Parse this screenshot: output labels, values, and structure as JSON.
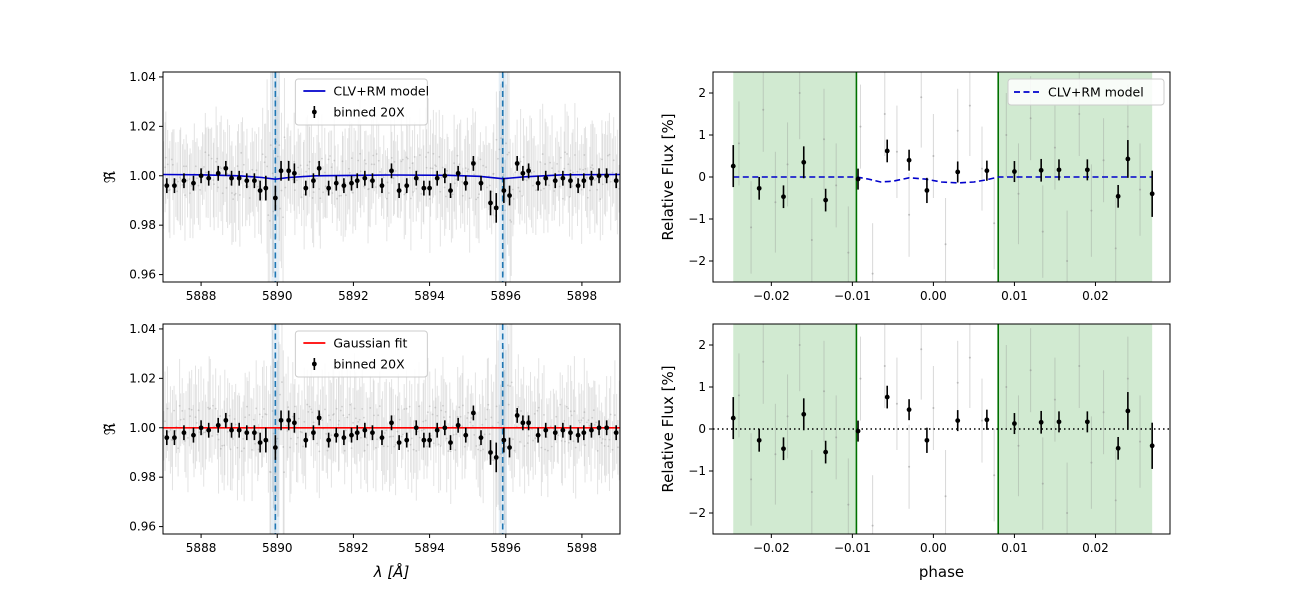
{
  "chart_data": [
    {
      "type": "line",
      "id": "tl",
      "ylabel": "ℜ̃",
      "xlabel": "",
      "xlim": [
        5887.0,
        5899.0
      ],
      "ylim": [
        0.957,
        1.042
      ],
      "xticks": [
        5888,
        5890,
        5892,
        5894,
        5896,
        5898
      ],
      "yticks": [
        0.96,
        0.98,
        1.0,
        1.02,
        1.04
      ],
      "yticklabels": [
        "0.96",
        "0.98",
        "1.00",
        "1.02",
        "1.04"
      ],
      "vlines": [
        5889.95,
        5895.92
      ],
      "model": {
        "name": "CLV+RM model",
        "color": "#0000cc",
        "style": "solid",
        "points": [
          [
            5887.0,
            1.0005
          ],
          [
            5888.0,
            1.0004
          ],
          [
            5889.0,
            1.0
          ],
          [
            5889.6,
            0.9993
          ],
          [
            5889.95,
            0.9986
          ],
          [
            5890.3,
            0.9993
          ],
          [
            5891.0,
            1.0
          ],
          [
            5893.0,
            1.0003
          ],
          [
            5894.5,
            1.0002
          ],
          [
            5895.3,
            0.9998
          ],
          [
            5895.92,
            0.9988
          ],
          [
            5896.5,
            0.9996
          ],
          [
            5897.5,
            1.0004
          ],
          [
            5899.0,
            1.0005
          ]
        ]
      },
      "binned": {
        "name": "binned 20X",
        "x": [
          5887.1,
          5887.3,
          5887.55,
          5887.8,
          5888.0,
          5888.2,
          5888.45,
          5888.65,
          5888.8,
          5889.0,
          5889.2,
          5889.4,
          5889.55,
          5889.7,
          5889.95,
          5890.1,
          5890.3,
          5890.45,
          5890.75,
          5890.95,
          5891.1,
          5891.35,
          5891.55,
          5891.75,
          5891.95,
          5892.1,
          5892.3,
          5892.5,
          5892.75,
          5893.0,
          5893.2,
          5893.4,
          5893.65,
          5893.85,
          5894.0,
          5894.2,
          5894.4,
          5894.55,
          5894.75,
          5894.95,
          5895.15,
          5895.35,
          5895.6,
          5895.75,
          5895.95,
          5896.1,
          5896.3,
          5896.45,
          5896.6,
          5896.85,
          5897.05,
          5897.3,
          5897.5,
          5897.7,
          5897.9,
          5898.05,
          5898.25,
          5898.45,
          5898.65,
          5898.9
        ],
        "y": [
          0.996,
          0.996,
          0.998,
          0.997,
          1.0,
          0.999,
          1.001,
          1.003,
          0.999,
          0.999,
          0.998,
          0.998,
          0.994,
          0.995,
          0.991,
          1.002,
          1.002,
          1.001,
          0.995,
          0.998,
          1.003,
          0.995,
          0.997,
          0.996,
          0.997,
          0.998,
          0.999,
          0.998,
          0.996,
          1.002,
          0.994,
          0.996,
          0.999,
          0.995,
          0.995,
          0.999,
          1.0,
          0.994,
          1.001,
          0.997,
          1.005,
          0.997,
          0.989,
          0.987,
          0.994,
          0.992,
          1.005,
          1.001,
          1.002,
          0.997,
          0.999,
          0.998,
          0.999,
          0.998,
          0.996,
          0.998,
          0.999,
          1.0,
          1.0,
          0.998
        ],
        "err": [
          0.003,
          0.003,
          0.003,
          0.003,
          0.003,
          0.003,
          0.003,
          0.003,
          0.003,
          0.003,
          0.003,
          0.003,
          0.004,
          0.005,
          0.005,
          0.004,
          0.004,
          0.004,
          0.003,
          0.003,
          0.003,
          0.003,
          0.003,
          0.003,
          0.003,
          0.003,
          0.003,
          0.003,
          0.003,
          0.003,
          0.003,
          0.003,
          0.003,
          0.003,
          0.003,
          0.003,
          0.003,
          0.003,
          0.003,
          0.003,
          0.003,
          0.003,
          0.005,
          0.006,
          0.005,
          0.004,
          0.003,
          0.003,
          0.003,
          0.003,
          0.003,
          0.003,
          0.003,
          0.003,
          0.003,
          0.003,
          0.003,
          0.003,
          0.003,
          0.003
        ]
      },
      "legend_position": "upper-center"
    },
    {
      "type": "line",
      "id": "bl",
      "ylabel": "ℜ̃",
      "xlabel": "λ [Å]",
      "xlim": [
        5887.0,
        5899.0
      ],
      "ylim": [
        0.957,
        1.042
      ],
      "xticks": [
        5888,
        5890,
        5892,
        5894,
        5896,
        5898
      ],
      "yticks": [
        0.96,
        0.98,
        1.0,
        1.02,
        1.04
      ],
      "yticklabels": [
        "0.96",
        "0.98",
        "1.00",
        "1.02",
        "1.04"
      ],
      "vlines": [
        5889.95,
        5895.92
      ],
      "model": {
        "name": "Gaussian fit",
        "color": "#ff0000",
        "style": "solid",
        "points": [
          [
            5887.0,
            1.0
          ],
          [
            5899.0,
            1.0
          ]
        ]
      },
      "binned": {
        "name": "binned 20X",
        "x": [
          5887.1,
          5887.3,
          5887.55,
          5887.8,
          5888.0,
          5888.2,
          5888.45,
          5888.65,
          5888.8,
          5889.0,
          5889.2,
          5889.4,
          5889.55,
          5889.7,
          5889.95,
          5890.1,
          5890.3,
          5890.45,
          5890.75,
          5890.95,
          5891.1,
          5891.35,
          5891.55,
          5891.75,
          5891.95,
          5892.1,
          5892.3,
          5892.5,
          5892.75,
          5893.0,
          5893.2,
          5893.4,
          5893.65,
          5893.85,
          5894.0,
          5894.2,
          5894.4,
          5894.55,
          5894.75,
          5894.95,
          5895.15,
          5895.35,
          5895.6,
          5895.75,
          5895.95,
          5896.1,
          5896.3,
          5896.45,
          5896.6,
          5896.85,
          5897.05,
          5897.3,
          5897.5,
          5897.7,
          5897.9,
          5898.05,
          5898.25,
          5898.45,
          5898.65,
          5898.9
        ],
        "y": [
          0.996,
          0.996,
          0.998,
          0.997,
          1.0,
          0.999,
          1.001,
          1.003,
          0.999,
          0.999,
          0.998,
          0.998,
          0.994,
          0.995,
          0.992,
          1.003,
          1.003,
          1.002,
          0.995,
          0.998,
          1.004,
          0.995,
          0.997,
          0.996,
          0.997,
          0.998,
          0.999,
          0.998,
          0.996,
          1.002,
          0.994,
          0.995,
          1.0,
          0.995,
          0.995,
          0.999,
          1.0,
          0.994,
          1.001,
          0.997,
          1.006,
          0.996,
          0.99,
          0.988,
          0.995,
          0.992,
          1.005,
          1.002,
          1.002,
          0.997,
          0.999,
          0.998,
          0.999,
          0.998,
          0.997,
          0.998,
          0.999,
          1.0,
          1.0,
          0.998
        ],
        "err": [
          0.003,
          0.003,
          0.003,
          0.003,
          0.003,
          0.003,
          0.003,
          0.003,
          0.003,
          0.003,
          0.003,
          0.003,
          0.004,
          0.005,
          0.005,
          0.004,
          0.004,
          0.004,
          0.003,
          0.003,
          0.003,
          0.003,
          0.003,
          0.003,
          0.003,
          0.003,
          0.003,
          0.003,
          0.003,
          0.003,
          0.003,
          0.003,
          0.003,
          0.003,
          0.003,
          0.003,
          0.003,
          0.003,
          0.003,
          0.003,
          0.003,
          0.003,
          0.005,
          0.006,
          0.005,
          0.004,
          0.003,
          0.003,
          0.003,
          0.003,
          0.003,
          0.003,
          0.003,
          0.003,
          0.003,
          0.003,
          0.003,
          0.003,
          0.003,
          0.003
        ]
      },
      "legend_position": "upper-center"
    },
    {
      "type": "scatter",
      "id": "tr",
      "ylabel": "Relative Flux [%]",
      "xlabel": "",
      "xlim": [
        -0.0272,
        0.0292
      ],
      "ylim": [
        -2.5,
        2.5
      ],
      "xticks": [
        -0.02,
        -0.01,
        0.0,
        0.01,
        0.02
      ],
      "xticklabels": [
        "−0.02",
        "−0.01",
        "0.00",
        "0.01",
        "0.02"
      ],
      "yticks": [
        -2,
        -1,
        0,
        1,
        2
      ],
      "yticklabels": [
        "−2",
        "−1",
        "0",
        "1",
        "2"
      ],
      "shaded_regions": [
        [
          -0.0247,
          -0.0095
        ],
        [
          0.008,
          0.027
        ]
      ],
      "contact_lines": [
        -0.0095,
        0.008
      ],
      "model": {
        "name": "CLV+RM model",
        "color": "#0000cc",
        "style": "dashed",
        "points": [
          [
            -0.0247,
            0.0
          ],
          [
            -0.0095,
            0.0
          ],
          [
            -0.008,
            -0.05
          ],
          [
            -0.0065,
            -0.12
          ],
          [
            -0.005,
            -0.1
          ],
          [
            -0.003,
            -0.02
          ],
          [
            -0.001,
            -0.05
          ],
          [
            0.001,
            -0.12
          ],
          [
            0.003,
            -0.14
          ],
          [
            0.005,
            -0.12
          ],
          [
            0.0065,
            -0.07
          ],
          [
            0.008,
            0.0
          ],
          [
            0.027,
            0.0
          ]
        ]
      },
      "points": {
        "x": [
          -0.0247,
          -0.0215,
          -0.0185,
          -0.016,
          -0.0133,
          -0.0093,
          -0.0057,
          -0.003,
          -0.0008,
          0.003,
          0.0066,
          0.01,
          0.0133,
          0.0155,
          0.019,
          0.0228,
          0.024,
          0.027
        ],
        "y": [
          0.26,
          -0.27,
          -0.47,
          0.35,
          -0.55,
          -0.05,
          0.62,
          0.4,
          -0.32,
          0.12,
          0.15,
          0.13,
          0.16,
          0.17,
          0.17,
          -0.46,
          0.43,
          -0.4
        ],
        "err": [
          0.5,
          0.27,
          0.27,
          0.38,
          0.27,
          0.25,
          0.27,
          0.25,
          0.3,
          0.25,
          0.24,
          0.25,
          0.27,
          0.25,
          0.25,
          0.27,
          0.45,
          0.55
        ]
      },
      "raw_points": {
        "x": [
          -0.024,
          -0.0225,
          -0.021,
          -0.0195,
          -0.018,
          -0.0165,
          -0.015,
          -0.0135,
          -0.012,
          -0.0105,
          -0.009,
          -0.0075,
          -0.006,
          -0.0045,
          -0.003,
          -0.0015,
          0.0,
          0.0015,
          0.003,
          0.0045,
          0.006,
          0.0075,
          0.009,
          0.0105,
          0.012,
          0.0135,
          0.015,
          0.0165,
          0.018,
          0.0195,
          0.021,
          0.0225,
          0.024,
          0.0255
        ],
        "y": [
          0.8,
          -1.2,
          1.6,
          -0.6,
          0.3,
          2.0,
          -1.5,
          0.9,
          -0.2,
          -1.8,
          1.2,
          -2.3,
          1.5,
          0.6,
          -0.9,
          1.9,
          0.5,
          -1.6,
          1.1,
          1.7,
          0.2,
          -1.1,
          1.0,
          -0.4,
          1.4,
          -1.3,
          0.7,
          -2.0,
          1.5,
          -0.8,
          0.4,
          -1.7,
          1.2,
          -0.3
        ],
        "err": [
          1.0,
          1.1,
          1.0,
          1.2,
          1.0,
          1.1,
          1.0,
          1.2,
          1.0,
          1.1,
          1.0,
          1.2,
          1.0,
          1.1,
          1.0,
          1.2,
          1.0,
          1.1,
          1.0,
          1.2,
          1.0,
          1.1,
          1.0,
          1.2,
          1.0,
          1.1,
          1.0,
          1.2,
          1.0,
          1.1,
          1.0,
          1.2,
          1.0,
          1.1
        ]
      },
      "legend_position": "upper-right"
    },
    {
      "type": "scatter",
      "id": "br",
      "ylabel": "Relative Flux [%]",
      "xlabel": "phase",
      "xlim": [
        -0.0272,
        0.0292
      ],
      "ylim": [
        -2.5,
        2.5
      ],
      "xticks": [
        -0.02,
        -0.01,
        0.0,
        0.01,
        0.02
      ],
      "xticklabels": [
        "−0.02",
        "−0.01",
        "0.00",
        "0.01",
        "0.02"
      ],
      "yticks": [
        -2,
        -1,
        0,
        1,
        2
      ],
      "yticklabels": [
        "−2",
        "−1",
        "0",
        "1",
        "2"
      ],
      "shaded_regions": [
        [
          -0.0247,
          -0.0095
        ],
        [
          0.008,
          0.027
        ]
      ],
      "contact_lines": [
        -0.0095,
        0.008
      ],
      "model": {
        "name": "",
        "color": "#000000",
        "style": "dotted",
        "points": [
          [
            -0.0272,
            0.0
          ],
          [
            0.0292,
            0.0
          ]
        ]
      },
      "points": {
        "x": [
          -0.0247,
          -0.0215,
          -0.0185,
          -0.016,
          -0.0133,
          -0.0093,
          -0.0057,
          -0.003,
          -0.0008,
          0.003,
          0.0066,
          0.01,
          0.0133,
          0.0155,
          0.019,
          0.0228,
          0.024,
          0.027
        ],
        "y": [
          0.26,
          -0.27,
          -0.47,
          0.35,
          -0.55,
          -0.05,
          0.76,
          0.46,
          -0.27,
          0.2,
          0.22,
          0.13,
          0.16,
          0.17,
          0.17,
          -0.46,
          0.43,
          -0.4
        ],
        "err": [
          0.5,
          0.27,
          0.27,
          0.38,
          0.27,
          0.25,
          0.27,
          0.25,
          0.3,
          0.25,
          0.24,
          0.25,
          0.27,
          0.25,
          0.25,
          0.27,
          0.45,
          0.55
        ]
      },
      "raw_points": {
        "x": [
          -0.024,
          -0.0225,
          -0.021,
          -0.0195,
          -0.018,
          -0.0165,
          -0.015,
          -0.0135,
          -0.012,
          -0.0105,
          -0.009,
          -0.0075,
          -0.006,
          -0.0045,
          -0.003,
          -0.0015,
          0.0,
          0.0015,
          0.003,
          0.0045,
          0.006,
          0.0075,
          0.009,
          0.0105,
          0.012,
          0.0135,
          0.015,
          0.0165,
          0.018,
          0.0195,
          0.021,
          0.0225,
          0.024,
          0.0255
        ],
        "y": [
          0.8,
          -1.2,
          1.6,
          -0.6,
          0.3,
          2.0,
          -1.5,
          0.9,
          -0.2,
          -1.8,
          1.2,
          -2.3,
          1.5,
          0.6,
          -0.9,
          1.9,
          0.5,
          -1.6,
          1.1,
          1.7,
          0.2,
          -1.1,
          1.0,
          -0.4,
          1.4,
          -1.3,
          0.7,
          -2.0,
          1.5,
          -0.8,
          0.4,
          -1.7,
          1.2,
          -0.3
        ],
        "err": [
          1.0,
          1.1,
          1.0,
          1.2,
          1.0,
          1.1,
          1.0,
          1.2,
          1.0,
          1.1,
          1.0,
          1.2,
          1.0,
          1.1,
          1.0,
          1.2,
          1.0,
          1.1,
          1.0,
          1.2,
          1.0,
          1.1,
          1.0,
          1.2,
          1.0,
          1.1,
          1.0,
          1.2,
          1.0,
          1.1,
          1.0,
          1.2,
          1.0,
          1.1
        ]
      },
      "legend_position": "none"
    }
  ]
}
